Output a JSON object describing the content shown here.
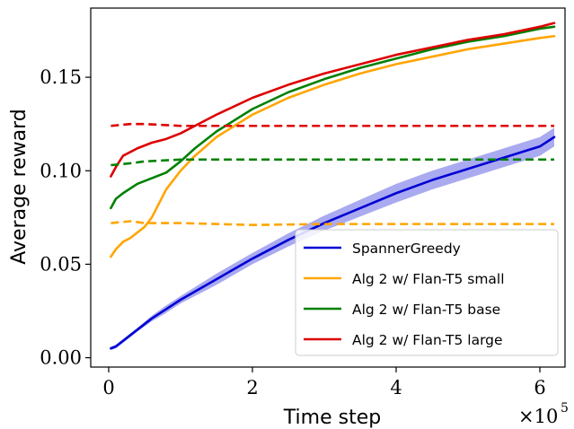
{
  "chart_data": {
    "type": "line",
    "title": "",
    "xlabel": "Time step",
    "ylabel": "Average reward",
    "x_multiplier_label": "×10",
    "x_multiplier_exponent": "5",
    "xlim": [
      -0.25,
      6.35
    ],
    "ylim": [
      -0.005,
      0.187
    ],
    "x_ticks": [
      0,
      2,
      4,
      6
    ],
    "x_tick_labels": [
      "0",
      "2",
      "4",
      "6"
    ],
    "y_ticks": [
      0.0,
      0.05,
      0.1,
      0.15
    ],
    "y_tick_labels": [
      "0.00",
      "0.05",
      "0.10",
      "0.15"
    ],
    "grid": false,
    "legend_position": "lower-right",
    "series": [
      {
        "name": "SpannerGreedy",
        "color": "#0000d4",
        "style": "solid",
        "band_color": "#aaaaf0",
        "x": [
          0.03,
          0.1,
          0.2,
          0.4,
          0.6,
          0.8,
          1.0,
          1.5,
          2.0,
          2.5,
          3.0,
          3.5,
          4.0,
          4.5,
          5.0,
          5.5,
          6.0,
          6.2
        ],
        "values": [
          0.005,
          0.006,
          0.009,
          0.015,
          0.021,
          0.026,
          0.031,
          0.042,
          0.053,
          0.063,
          0.072,
          0.08,
          0.088,
          0.095,
          0.101,
          0.107,
          0.113,
          0.118
        ],
        "band": [
          0.001,
          0.001,
          0.001,
          0.001,
          0.0015,
          0.002,
          0.002,
          0.003,
          0.003,
          0.0035,
          0.004,
          0.0045,
          0.005,
          0.005,
          0.005,
          0.005,
          0.005,
          0.005
        ]
      },
      {
        "name": "Alg 2 w/ Flan-T5 small",
        "color": "#ffa500",
        "style": "solid",
        "x": [
          0.03,
          0.1,
          0.2,
          0.3,
          0.4,
          0.5,
          0.6,
          0.8,
          1.0,
          1.2,
          1.5,
          2.0,
          2.5,
          3.0,
          3.5,
          4.0,
          4.5,
          5.0,
          5.5,
          6.0,
          6.2
        ],
        "values": [
          0.054,
          0.058,
          0.062,
          0.064,
          0.067,
          0.07,
          0.075,
          0.09,
          0.1,
          0.108,
          0.118,
          0.13,
          0.139,
          0.146,
          0.152,
          0.157,
          0.161,
          0.165,
          0.168,
          0.171,
          0.172
        ]
      },
      {
        "name": "Alg 2 w/ Flan-T5 base",
        "color": "#008000",
        "style": "solid",
        "x": [
          0.03,
          0.1,
          0.2,
          0.4,
          0.6,
          0.8,
          1.0,
          1.2,
          1.5,
          2.0,
          2.5,
          3.0,
          3.5,
          4.0,
          4.5,
          5.0,
          5.5,
          6.0,
          6.2
        ],
        "values": [
          0.08,
          0.085,
          0.088,
          0.093,
          0.096,
          0.099,
          0.105,
          0.112,
          0.121,
          0.133,
          0.142,
          0.149,
          0.155,
          0.16,
          0.165,
          0.169,
          0.172,
          0.176,
          0.177
        ]
      },
      {
        "name": "Alg 2 w/ Flan-T5 large",
        "color": "#dd0000",
        "style": "solid",
        "x": [
          0.03,
          0.1,
          0.2,
          0.4,
          0.6,
          0.8,
          1.0,
          1.2,
          1.5,
          2.0,
          2.5,
          3.0,
          3.5,
          4.0,
          4.5,
          5.0,
          5.5,
          6.0,
          6.2
        ],
        "values": [
          0.097,
          0.102,
          0.108,
          0.112,
          0.115,
          0.117,
          0.12,
          0.124,
          0.13,
          0.139,
          0.146,
          0.152,
          0.157,
          0.162,
          0.166,
          0.17,
          0.173,
          0.177,
          0.179
        ]
      },
      {
        "name": "Flan-T5 small (dashed)",
        "color": "#ffa500",
        "style": "dashed",
        "x": [
          0.03,
          0.3,
          0.5,
          1.0,
          2.0,
          3.0,
          4.0,
          5.0,
          6.0,
          6.2
        ],
        "values": [
          0.072,
          0.073,
          0.072,
          0.072,
          0.071,
          0.0715,
          0.0715,
          0.0715,
          0.0715,
          0.0715
        ]
      },
      {
        "name": "Flan-T5 base (dashed)",
        "color": "#008000",
        "style": "dashed",
        "x": [
          0.03,
          0.3,
          0.5,
          1.0,
          2.0,
          3.0,
          4.0,
          5.0,
          6.0,
          6.2
        ],
        "values": [
          0.103,
          0.104,
          0.105,
          0.106,
          0.106,
          0.106,
          0.106,
          0.106,
          0.106,
          0.106
        ]
      },
      {
        "name": "Flan-T5 large (dashed)",
        "color": "#dd0000",
        "style": "dashed",
        "x": [
          0.03,
          0.3,
          0.5,
          1.0,
          2.0,
          3.0,
          4.0,
          5.0,
          6.0,
          6.2
        ],
        "values": [
          0.124,
          0.125,
          0.125,
          0.124,
          0.124,
          0.124,
          0.124,
          0.124,
          0.124,
          0.124
        ]
      }
    ],
    "legend": [
      {
        "label": "SpannerGreedy",
        "color": "#0000d4"
      },
      {
        "label": "Alg 2 w/ Flan-T5 small",
        "color": "#ffa500"
      },
      {
        "label": "Alg 2 w/ Flan-T5 base",
        "color": "#008000"
      },
      {
        "label": "Alg 2 w/ Flan-T5 large",
        "color": "#dd0000"
      }
    ]
  }
}
